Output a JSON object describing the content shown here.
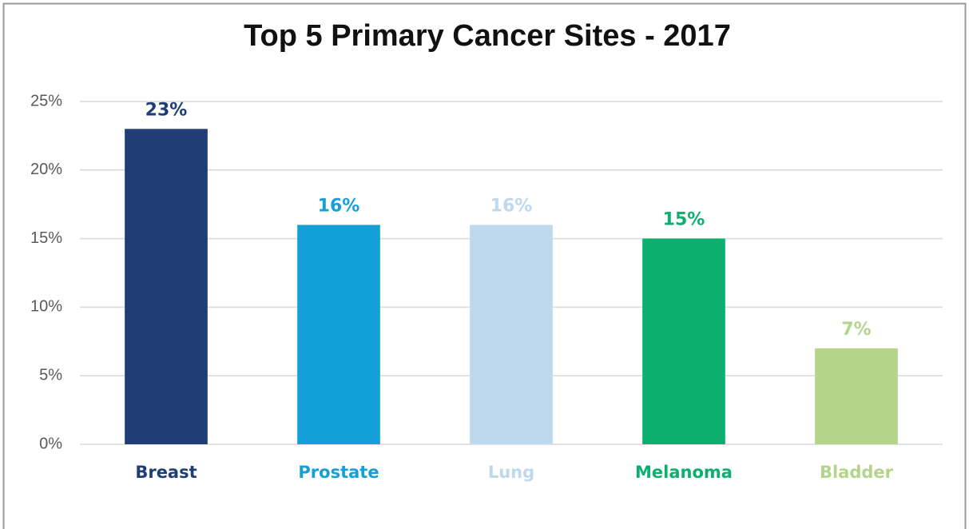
{
  "chart_data": {
    "type": "bar",
    "title": "Top 5 Primary Cancer Sites - 2017",
    "categories": [
      "Breast",
      "Prostate",
      "Lung",
      "Melanoma",
      "Bladder"
    ],
    "values": [
      23,
      16,
      16,
      15,
      7
    ],
    "value_labels": [
      "23%",
      "16%",
      "16%",
      "15%",
      "7%"
    ],
    "colors": [
      "#1f3e75",
      "#159fd9",
      "#bed8ee",
      "#0cb06e",
      "#b4d48c"
    ],
    "ylim": [
      0,
      25
    ],
    "yticks": [
      {
        "value": 0,
        "label": "0%"
      },
      {
        "value": 5,
        "label": "5%"
      },
      {
        "value": 10,
        "label": "10%"
      },
      {
        "value": 15,
        "label": "15%"
      },
      {
        "value": 20,
        "label": "20%"
      },
      {
        "value": 25,
        "label": "25%"
      }
    ],
    "grid": true
  }
}
